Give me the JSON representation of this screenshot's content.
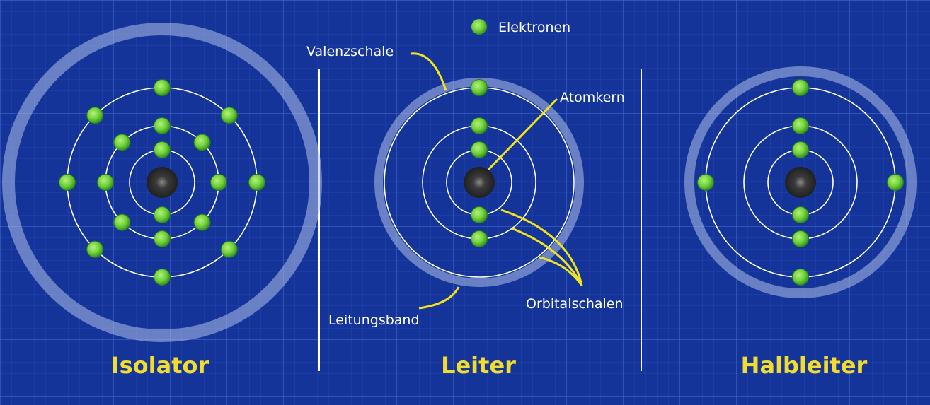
{
  "legend": {
    "label": "Elektronen"
  },
  "atoms": [
    {
      "title": "Isolator",
      "shells": [
        2,
        8,
        8
      ],
      "outer_band": "wide"
    },
    {
      "title": "Leiter",
      "shells": [
        2,
        2,
        1
      ],
      "outer_band": "adjacent"
    },
    {
      "title": "Halbleiter",
      "shells": [
        2,
        2,
        4
      ],
      "outer_band": "near"
    }
  ],
  "annotations": {
    "valence_shell": "Valenzschale",
    "nucleus": "Atomkern",
    "conduction_band": "Leitungsband",
    "orbital_shells": "Orbitalschalen"
  },
  "colors": {
    "background": "#14349a",
    "grid": "#3b63c9",
    "electron": "#6fd13a",
    "nucleus": "#2e2e2e",
    "title": "#f2dc2e",
    "pointer": "#f3e31b",
    "band": "#aec0ea"
  }
}
